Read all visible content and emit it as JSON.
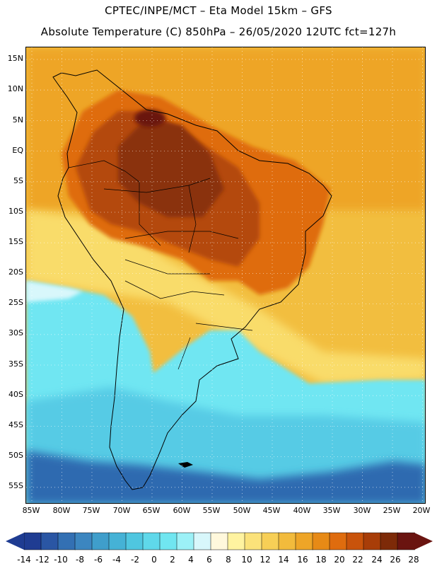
{
  "header": {
    "line1": "CPTEC/INPE/MCT –   Eta Model 15km – GFS",
    "line2": "Absolute Temperature (C) 850hPa – 26/05/2020 12UTC fct=127h"
  },
  "axes": {
    "lat_labels": [
      "15N",
      "10N",
      "5N",
      "EQ",
      "5S",
      "10S",
      "15S",
      "20S",
      "25S",
      "30S",
      "35S",
      "40S",
      "45S",
      "50S",
      "55S"
    ],
    "lon_labels": [
      "85W",
      "80W",
      "75W",
      "70W",
      "65W",
      "60W",
      "55W",
      "50W",
      "45W",
      "40W",
      "35W",
      "30W",
      "25W",
      "20W"
    ]
  },
  "colorbar": {
    "values": [
      "-14",
      "-12",
      "-10",
      "-8",
      "-6",
      "-4",
      "-2",
      "0",
      "2",
      "4",
      "6",
      "8",
      "10",
      "12",
      "14",
      "16",
      "18",
      "20",
      "22",
      "24",
      "26",
      "28"
    ],
    "colors": [
      "#1f3c92",
      "#2a56a4",
      "#3370b3",
      "#3c86c0",
      "#3f9ecb",
      "#45b2d6",
      "#4fc6e0",
      "#5fd8ea",
      "#70e6f0",
      "#9cf1f7",
      "#d8f7fb",
      "#fff8dc",
      "#fff3a0",
      "#fbe27a",
      "#f7cf56",
      "#f2bb3c",
      "#eea527",
      "#e78a16",
      "#df6c0e",
      "#c9530b",
      "#a83d08",
      "#7d2a08",
      "#6a1410"
    ]
  },
  "map_colors": {
    "cold_deep": "#1f3c92",
    "cold": "#2f6ab0",
    "cool": "#3fa7d2",
    "mild_blue": "#56cbe5",
    "cyan": "#6fe6f2",
    "pale": "#d8f7fb",
    "cream": "#fff4cf",
    "yellow": "#f9dc6a",
    "gold": "#f2be3f",
    "orange": "#eea527",
    "dark_orange": "#df6c0e",
    "rust": "#b44a0b",
    "brown": "#8a300a",
    "maroon": "#6a1410",
    "outline": "#000000"
  }
}
